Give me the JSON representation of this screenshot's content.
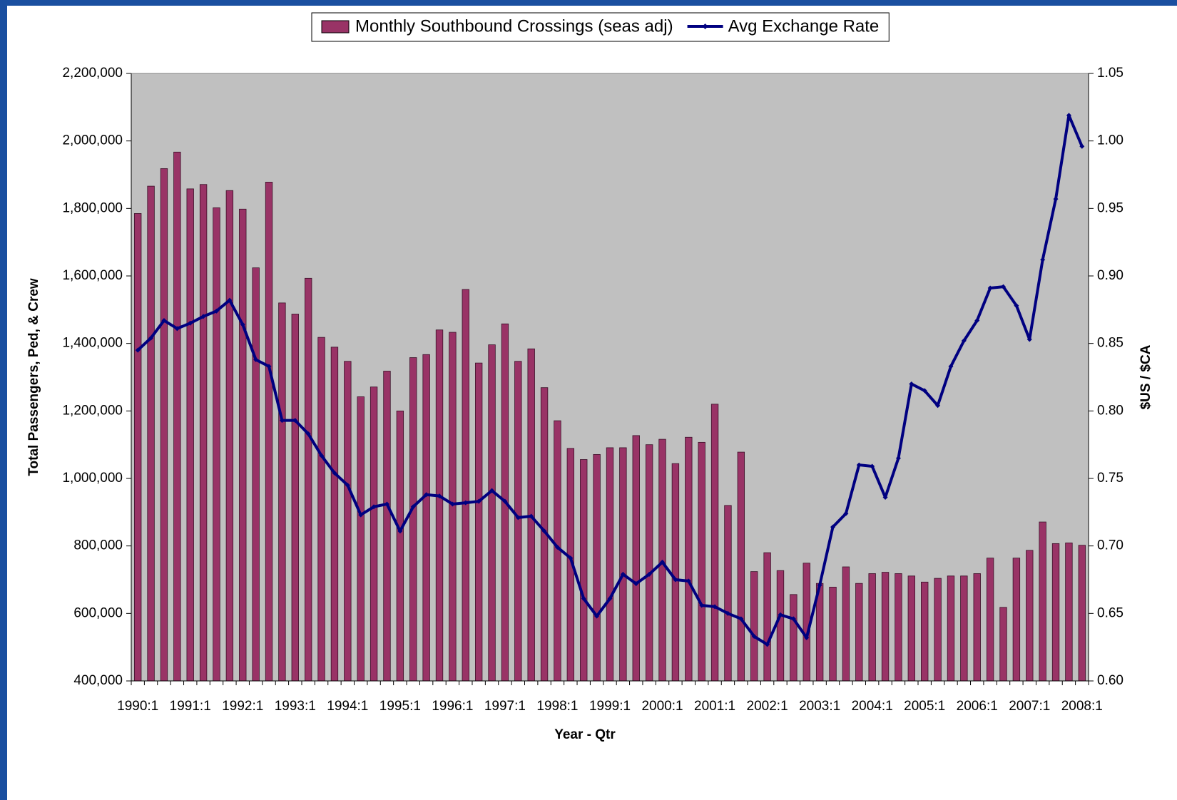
{
  "chart_data": {
    "type": "bar_line",
    "x_label": "Year - Qtr",
    "y_label": "Total Passengers, Ped, & Crew",
    "y2_label": "$US / $CA",
    "categories": [
      "1990:1",
      null,
      null,
      null,
      "1991:1",
      null,
      null,
      null,
      "1992:1",
      null,
      null,
      null,
      "1993:1",
      null,
      null,
      null,
      "1994:1",
      null,
      null,
      null,
      "1995:1",
      null,
      null,
      null,
      "1996:1",
      null,
      null,
      null,
      "1997:1",
      null,
      null,
      null,
      "1998:1",
      null,
      null,
      null,
      "1999:1",
      null,
      null,
      null,
      "2000:1",
      null,
      null,
      null,
      "2001:1",
      null,
      null,
      null,
      "2002:1",
      null,
      null,
      null,
      "2003:1",
      null,
      null,
      null,
      "2004:1",
      null,
      null,
      null,
      "2005:1",
      null,
      null,
      null,
      "2006:1",
      null,
      null,
      null,
      "2007:1",
      null,
      null,
      null,
      "2008:1"
    ],
    "series": [
      {
        "name": "Monthly Southbound Crossings (seas adj)",
        "type": "bar",
        "color": "#993366",
        "values": [
          1785000,
          1866000,
          1918000,
          1967000,
          1858000,
          1871000,
          1802000,
          1853000,
          1798000,
          1624000,
          1878000,
          1520000,
          1487000,
          1593000,
          1418000,
          1389000,
          1347000,
          1242000,
          1271000,
          1318000,
          1200000,
          1358000,
          1367000,
          1440000,
          1433000,
          1560000,
          1342000,
          1396000,
          1458000,
          1347000,
          1384000,
          1269000,
          1171000,
          1089000,
          1056000,
          1071000,
          1091000,
          1091000,
          1127000,
          1100000,
          1116000,
          1044000,
          1122000,
          1107000,
          1220000,
          920000,
          1078000,
          724000,
          780000,
          727000,
          656000,
          749000,
          689000,
          678000,
          738000,
          689000,
          718000,
          722000,
          718000,
          711000,
          693000,
          704000,
          711000,
          711000,
          718000,
          764000,
          618000,
          764000,
          787000,
          871000,
          807000,
          809000,
          802000
        ]
      },
      {
        "name": "Avg Exchange Rate",
        "type": "line",
        "axis": "y2",
        "color": "#000080",
        "values": [
          0.845,
          0.854,
          0.867,
          0.861,
          0.865,
          0.87,
          0.874,
          0.882,
          0.864,
          0.838,
          0.833,
          0.793,
          0.793,
          0.783,
          0.767,
          0.754,
          0.745,
          0.723,
          0.729,
          0.731,
          0.711,
          0.729,
          0.738,
          0.737,
          0.731,
          0.732,
          0.733,
          0.741,
          0.733,
          0.721,
          0.722,
          0.711,
          0.699,
          0.691,
          0.661,
          0.648,
          0.661,
          0.679,
          0.672,
          0.679,
          0.688,
          0.675,
          0.674,
          0.656,
          0.655,
          0.65,
          0.646,
          0.633,
          0.627,
          0.649,
          0.646,
          0.632,
          0.671,
          0.714,
          0.724,
          0.76,
          0.759,
          0.736,
          0.765,
          0.82,
          0.815,
          0.804,
          0.833,
          0.852,
          0.867,
          0.891,
          0.892,
          0.878,
          0.853,
          0.912,
          0.957,
          1.019,
          0.996
        ]
      }
    ],
    "ylim": [
      400000,
      2200000
    ],
    "yticks": [
      {
        "value": 400000,
        "label": "400,000"
      },
      {
        "value": 600000,
        "label": "600,000"
      },
      {
        "value": 800000,
        "label": "800,000"
      },
      {
        "value": 1000000,
        "label": "1,000,000"
      },
      {
        "value": 1200000,
        "label": "1,200,000"
      },
      {
        "value": 1400000,
        "label": "1,400,000"
      },
      {
        "value": 1600000,
        "label": "1,600,000"
      },
      {
        "value": 1800000,
        "label": "1,800,000"
      },
      {
        "value": 2000000,
        "label": "2,000,000"
      },
      {
        "value": 2200000,
        "label": "2,200,000"
      }
    ],
    "y2lim": [
      0.6,
      1.05
    ],
    "y2ticks": [
      {
        "value": 0.6,
        "label": "0.60"
      },
      0.65,
      {
        "value": 0.7,
        "label": "0.70"
      },
      0.75,
      {
        "value": 0.8,
        "label": "0.80"
      },
      0.85,
      {
        "value": 0.9,
        "label": "0.90"
      },
      0.95,
      {
        "value": 1.0,
        "label": "1.00"
      },
      1.05
    ],
    "plot_background": "#c0c0c0",
    "legend": "top"
  }
}
